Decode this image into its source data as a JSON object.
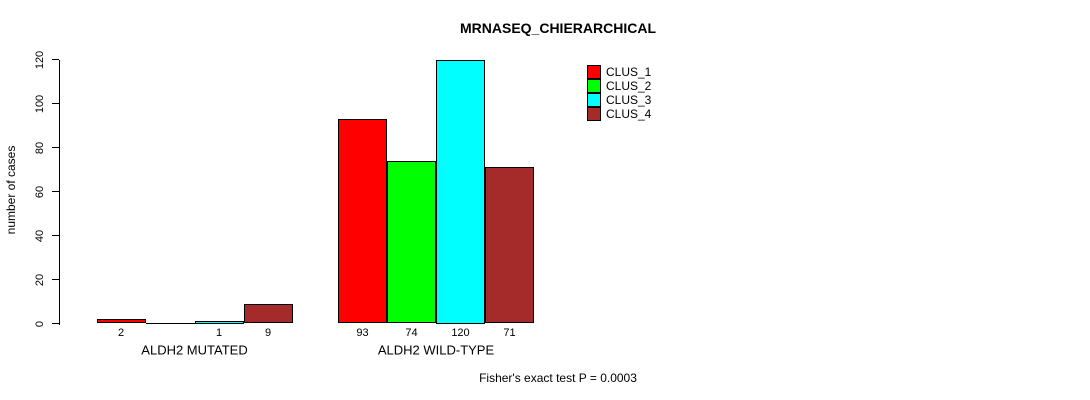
{
  "chart_data": {
    "type": "bar",
    "title": "MRNASEQ_CHIERARCHICAL",
    "ylabel": "number of cases",
    "xlabel": "",
    "annotation": "Fisher's exact test P = 0.0003",
    "ylim": [
      0,
      120
    ],
    "yticks": [
      0,
      20,
      40,
      60,
      80,
      100,
      120
    ],
    "grid": false,
    "legend_position": "top-right-inside",
    "categories": [
      "ALDH2 MUTATED",
      "ALDH2 WILD-TYPE"
    ],
    "series": [
      {
        "name": "CLUS_1",
        "color": "#ff0000",
        "values": [
          2,
          93
        ]
      },
      {
        "name": "CLUS_2",
        "color": "#00ff00",
        "values": [
          0,
          74
        ]
      },
      {
        "name": "CLUS_3",
        "color": "#00ffff",
        "values": [
          1,
          120
        ]
      },
      {
        "name": "CLUS_4",
        "color": "#a52a2a",
        "values": [
          9,
          71
        ]
      }
    ],
    "value_labels": [
      [
        "2",
        "",
        "1",
        "9"
      ],
      [
        "93",
        "74",
        "120",
        "71"
      ]
    ]
  }
}
